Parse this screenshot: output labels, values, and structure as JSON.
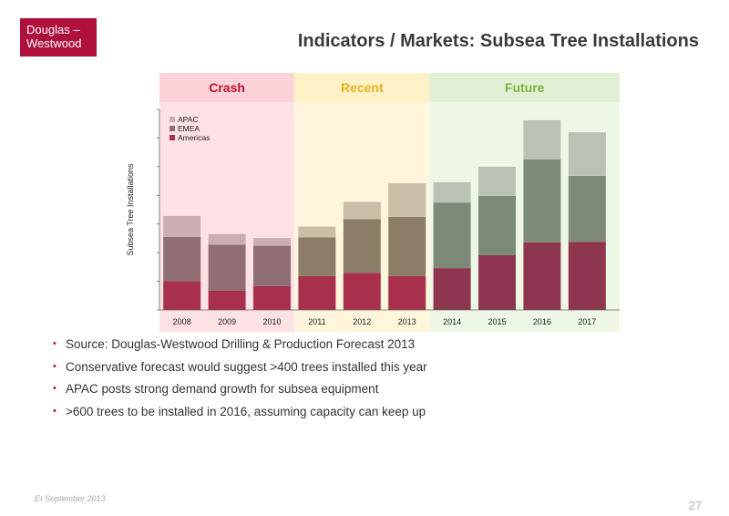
{
  "logo": {
    "line1": "Douglas –",
    "line2": "Westwood"
  },
  "title": "Indicators / Markets: Subsea Tree Installations",
  "footer": {
    "left": "EI September 2013",
    "page": "27"
  },
  "bullets": [
    "Source: Douglas-Westwood Drilling & Production Forecast 2013",
    "Conservative forecast would suggest >400 trees installed this year",
    "APAC posts strong demand growth for subsea equipment",
    ">600 trees to be installed in 2016, assuming capacity can keep up"
  ],
  "chart_data": {
    "type": "bar",
    "stacked": true,
    "categories": [
      "2008",
      "2009",
      "2010",
      "2011",
      "2012",
      "2013",
      "2014",
      "2015",
      "2016",
      "2017"
    ],
    "series": [
      {
        "name": "Americas",
        "values": [
          100,
          67,
          83,
          118,
          129,
          118,
          146,
          191,
          236,
          238
        ]
      },
      {
        "name": "EMEA",
        "values": [
          155,
          161,
          141,
          135,
          188,
          207,
          229,
          207,
          289,
          230
        ]
      },
      {
        "name": "APAC",
        "values": [
          73,
          37,
          27,
          38,
          60,
          117,
          71,
          102,
          137,
          152
        ]
      }
    ],
    "ylabel": "Subsea Tree Installations",
    "ylim": [
      0,
      700
    ],
    "y_ticks_labeled": false,
    "legend": "top-left",
    "grid": false,
    "phases": [
      {
        "label": "Crash",
        "span": [
          0,
          2
        ],
        "band_color": "#fde1e5",
        "header_color": "#fbd2d8",
        "text_color": "#c01030"
      },
      {
        "label": "Recent",
        "span": [
          3,
          5
        ],
        "band_color": "#fff6dc",
        "header_color": "#fdf1c6",
        "text_color": "#e8b020"
      },
      {
        "label": "Future",
        "span": [
          6,
          9
        ],
        "band_color": "#eef7e6",
        "header_color": "#e2f1d6",
        "text_color": "#7cb342"
      }
    ]
  },
  "colors": {
    "brand": "#b0103c",
    "phase_colors": [
      {
        "Americas": "#a8304c",
        "EMEA": "#8f6f74",
        "APAC": "#c9aeb2"
      },
      {
        "Americas": "#a8304c",
        "EMEA": "#8b7d68",
        "APAC": "#c9bea8"
      },
      {
        "Americas": "#8e3550",
        "EMEA": "#7d8a78",
        "APAC": "#b9c2b4"
      }
    ]
  }
}
